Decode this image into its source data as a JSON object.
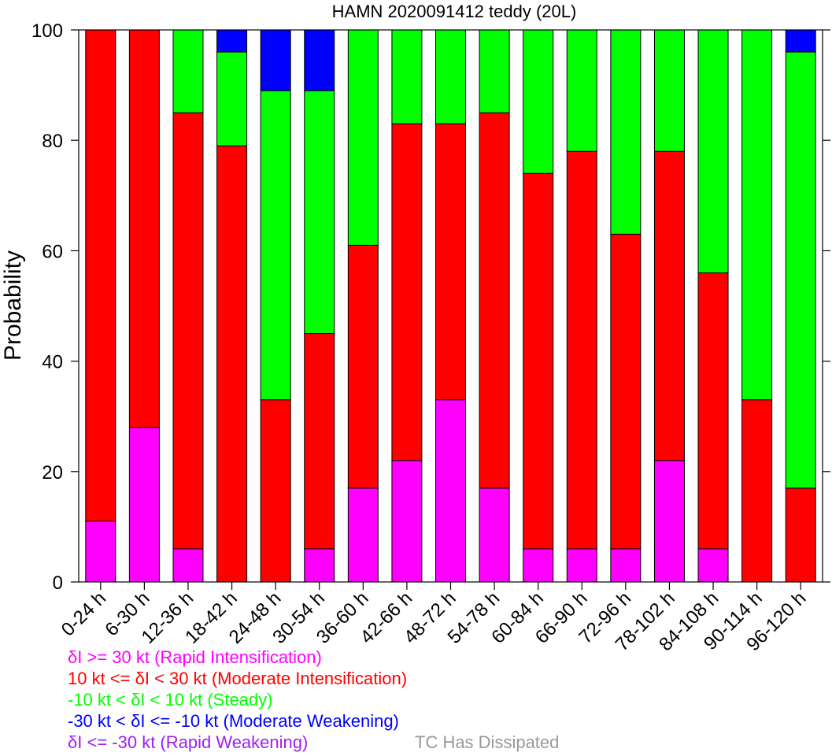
{
  "chart_data": {
    "type": "bar",
    "stacked": true,
    "title": "HAMN 2020091412 teddy (20L)",
    "xlabel": "",
    "ylabel": "Probability",
    "ylim": [
      0,
      100
    ],
    "yticks": [
      0,
      20,
      40,
      60,
      80,
      100
    ],
    "grid": false,
    "categories": [
      "0-24 h",
      "6-30 h",
      "12-36 h",
      "18-42 h",
      "24-48 h",
      "30-54 h",
      "36-60 h",
      "42-66 h",
      "48-72 h",
      "54-78 h",
      "60-84 h",
      "66-90 h",
      "72-96 h",
      "78-102 h",
      "84-108 h",
      "90-114 h",
      "96-120 h"
    ],
    "series": [
      {
        "name": "δI >= 30 kt (Rapid Intensification)",
        "color": "#ff00ff",
        "values": [
          11,
          28,
          6,
          0,
          0,
          6,
          17,
          22,
          33,
          17,
          6,
          6,
          6,
          22,
          6,
          0,
          0
        ]
      },
      {
        "name": "10 kt <= δI < 30 kt (Moderate Intensification)",
        "color": "#ff0000",
        "values": [
          89,
          72,
          79,
          79,
          33,
          39,
          44,
          61,
          50,
          68,
          68,
          72,
          57,
          56,
          50,
          33,
          17
        ]
      },
      {
        "name": "-10 kt < δI < 10 kt (Steady)",
        "color": "#00ff00",
        "values": [
          0,
          0,
          15,
          17,
          56,
          44,
          39,
          17,
          17,
          15,
          26,
          22,
          37,
          22,
          44,
          67,
          79
        ]
      },
      {
        "name": "-30 kt < δI <= -10 kt (Moderate Weakening)",
        "color": "#0000ff",
        "values": [
          0,
          0,
          0,
          4,
          11,
          11,
          0,
          0,
          0,
          0,
          0,
          0,
          0,
          0,
          0,
          0,
          4
        ]
      },
      {
        "name": "δI <= -30 kt (Rapid Weakening)",
        "color": "#a020f0",
        "values": [
          0,
          0,
          0,
          0,
          0,
          0,
          0,
          0,
          0,
          0,
          0,
          0,
          0,
          0,
          0,
          0,
          0
        ]
      }
    ],
    "extra_legend": {
      "name": "TC Has Dissipated",
      "color": "#999999"
    }
  }
}
